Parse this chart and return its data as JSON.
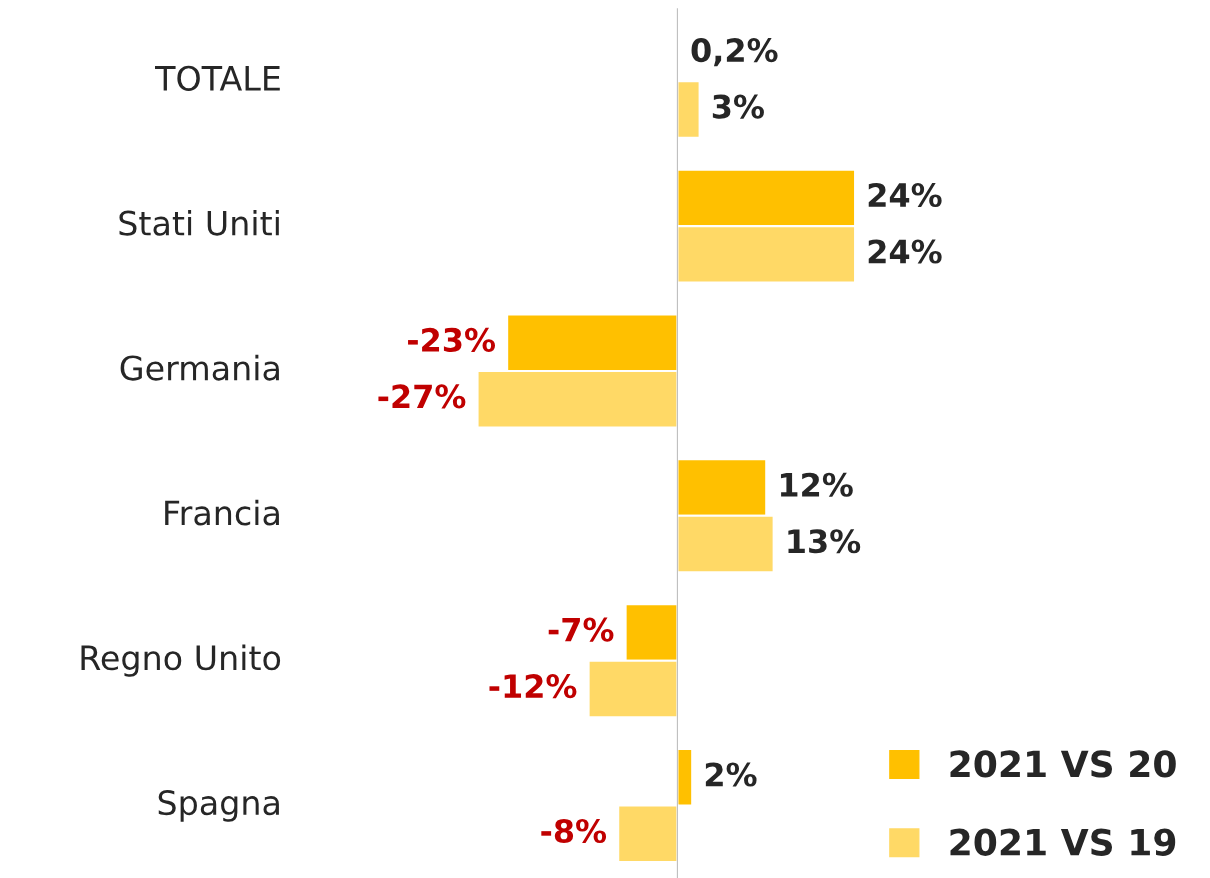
{
  "chart_data": {
    "type": "bar",
    "orientation": "horizontal",
    "categories": [
      "TOTALE",
      "Stati Uniti",
      "Germania",
      "Francia",
      "Regno Unito",
      "Spagna"
    ],
    "series": [
      {
        "name": "2021 VS 20",
        "color": "#ffc000",
        "values": [
          0.2,
          24,
          -23,
          12,
          -7,
          2
        ],
        "value_labels": [
          "0,2%",
          "24%",
          "-23%",
          "12%",
          "-7%",
          "2%"
        ]
      },
      {
        "name": "2021 VS 19",
        "color": "#ffd966",
        "values": [
          3,
          24,
          -27,
          13,
          -12,
          -8
        ],
        "value_labels": [
          "3%",
          "24%",
          "-27%",
          "13%",
          "-12%",
          "-8%"
        ]
      }
    ],
    "legend": "bottom right"
  }
}
